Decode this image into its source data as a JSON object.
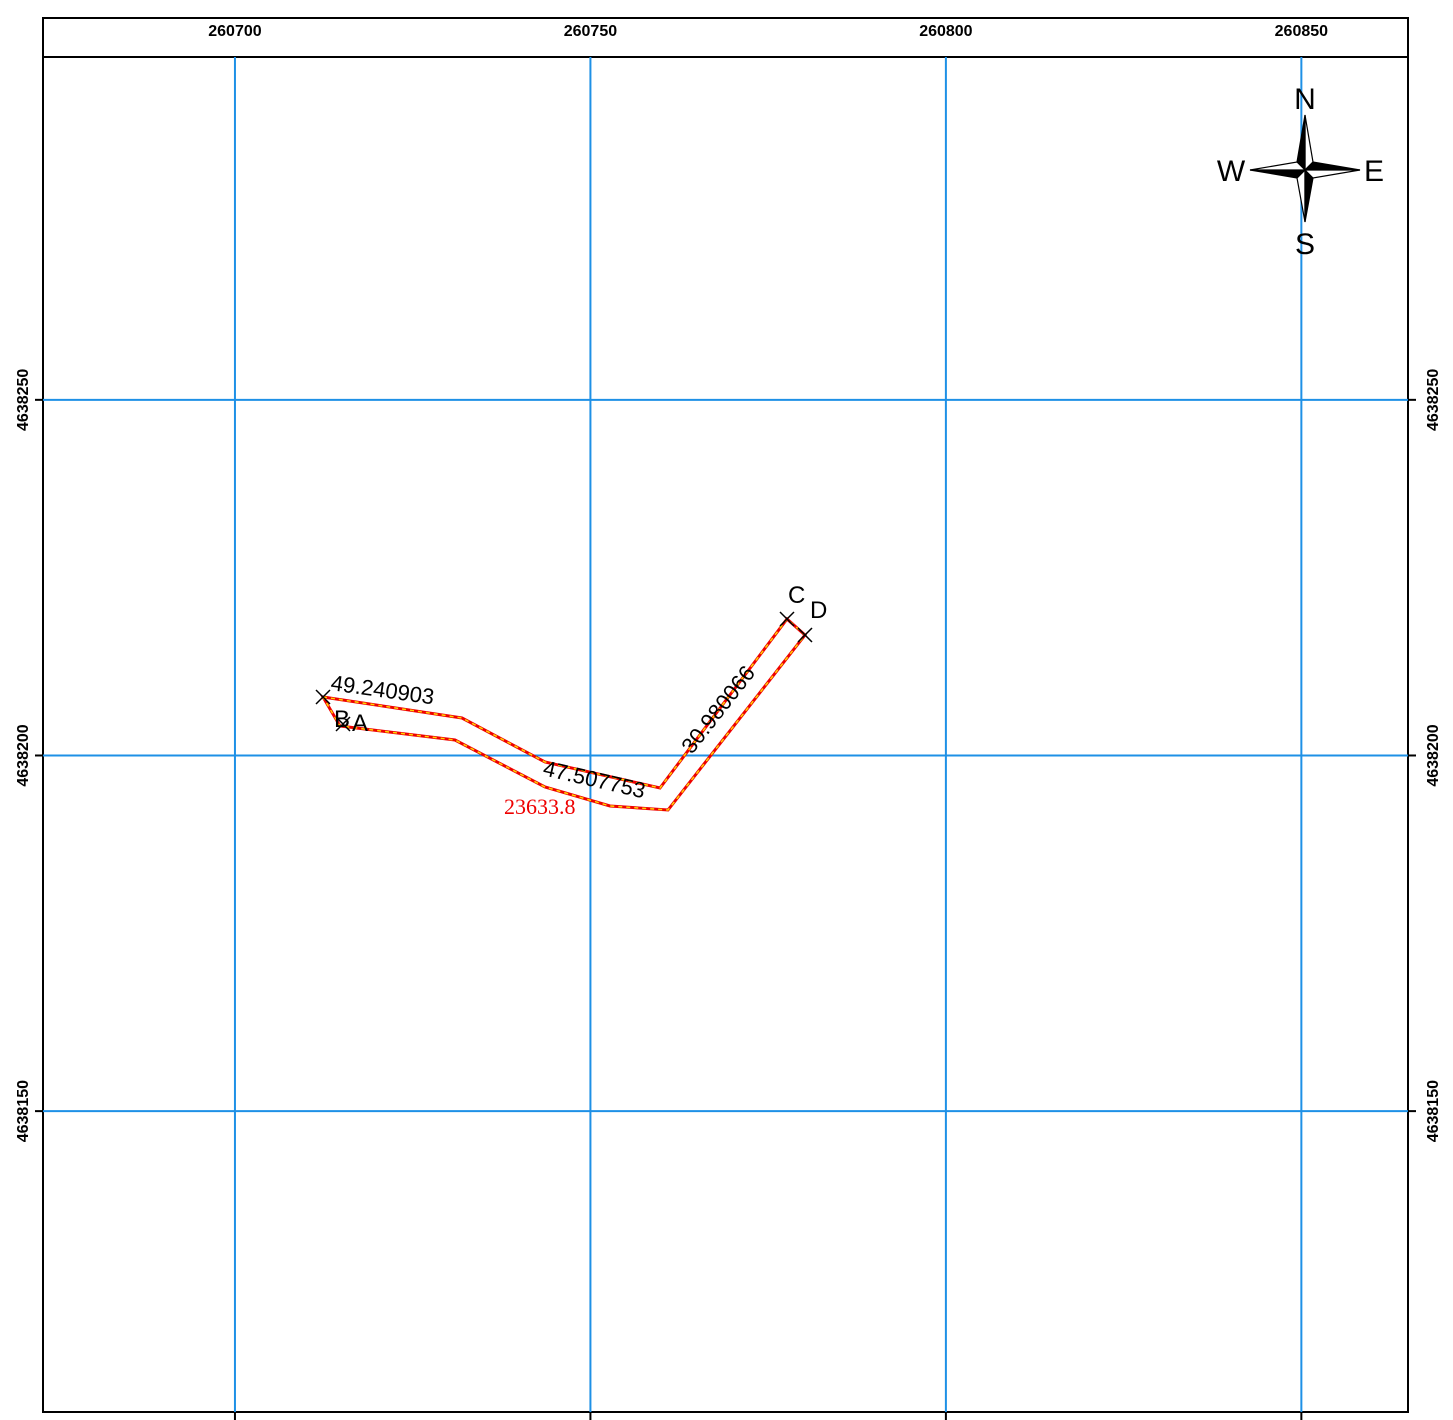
{
  "map": {
    "xlim": [
      260673,
      260865
    ],
    "ylim": [
      4638107.7,
      4638298.2
    ],
    "x_ticks": [
      260700,
      260750,
      260800,
      260850
    ],
    "y_ticks": [
      4638150,
      4638200,
      4638250
    ],
    "compass": {
      "north": "N",
      "south": "S",
      "east": "E",
      "west": "W"
    },
    "points": {
      "a": "A",
      "b": "B",
      "c": "C",
      "d": "D"
    },
    "segment_labels": [
      "49.240903",
      "47.507753",
      "30.980066"
    ],
    "area_label": "23633.8"
  }
}
